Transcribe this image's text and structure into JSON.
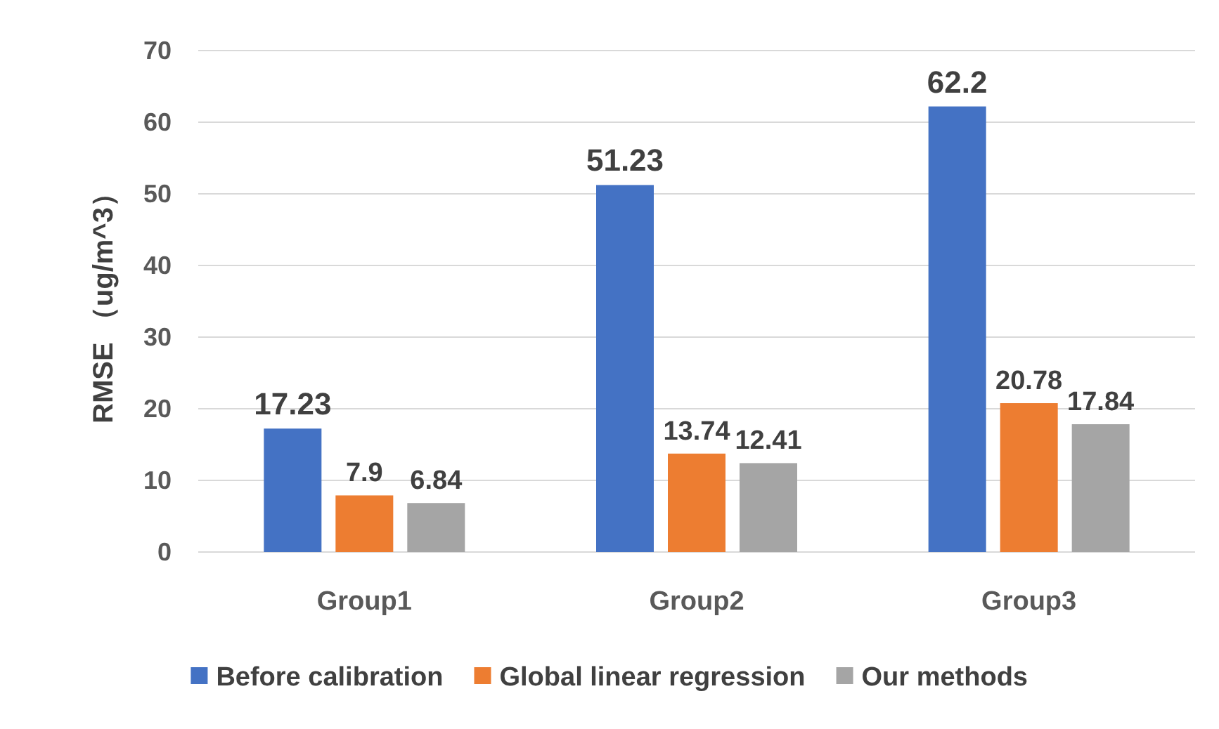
{
  "chart_data": {
    "type": "bar",
    "ylabel": "RMSE （ug/m^3）",
    "categories": [
      "Group1",
      "Group2",
      "Group3"
    ],
    "series": [
      {
        "name": "Before calibration",
        "color": "#4472c4",
        "values": [
          17.23,
          51.23,
          62.2
        ]
      },
      {
        "name": "Global linear regression",
        "color": "#ed7d31",
        "values": [
          7.9,
          13.74,
          20.78
        ]
      },
      {
        "name": "Our methods",
        "color": "#a5a5a5",
        "values": [
          6.84,
          12.41,
          17.84
        ]
      }
    ],
    "ylim": [
      0,
      70
    ],
    "yticks": [
      0,
      10,
      20,
      30,
      40,
      50,
      60,
      70
    ],
    "grid": "y",
    "legend": "bottom",
    "data_labels": true
  }
}
